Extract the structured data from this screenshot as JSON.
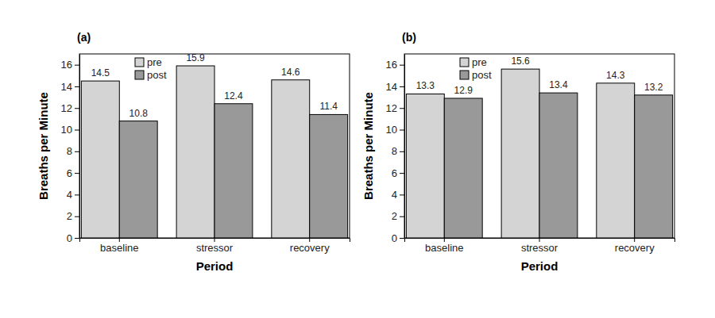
{
  "chart_data": [
    {
      "type": "bar",
      "title": "(a)",
      "x_label": "Period",
      "y_label": "Breaths per Minute",
      "categories": [
        "baseline",
        "stressor",
        "recovery"
      ],
      "series": [
        {
          "name": "pre",
          "color": "#d4d4d4",
          "values": [
            14.5,
            15.9,
            14.6
          ]
        },
        {
          "name": "post",
          "color": "#999999",
          "values": [
            10.8,
            12.4,
            11.4
          ]
        }
      ],
      "ylim": [
        0,
        17
      ],
      "yticks": [
        0,
        2,
        4,
        6,
        8,
        10,
        12,
        14,
        16
      ],
      "grid": false,
      "legend": "upper left",
      "data_labels": true
    },
    {
      "type": "bar",
      "title": "(b)",
      "x_label": "Period",
      "y_label": "Breaths per Minute",
      "categories": [
        "baseline",
        "stressor",
        "recovery"
      ],
      "series": [
        {
          "name": "pre",
          "color": "#d4d4d4",
          "values": [
            13.3,
            15.6,
            14.3
          ]
        },
        {
          "name": "post",
          "color": "#999999",
          "values": [
            12.9,
            13.4,
            13.2
          ]
        }
      ],
      "ylim": [
        0,
        17
      ],
      "yticks": [
        0,
        2,
        4,
        6,
        8,
        10,
        12,
        14,
        16
      ],
      "grid": false,
      "legend": "upper left",
      "data_labels": true
    }
  ]
}
